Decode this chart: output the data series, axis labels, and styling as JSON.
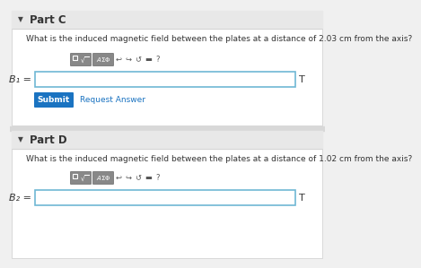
{
  "bg_color": "#f0f0f0",
  "panel_color": "#ffffff",
  "part_c_label": "Part C",
  "part_d_label": "Part D",
  "question_c": "What is the induced magnetic field between the plates at a distance of 2.03 cm from the axis?",
  "question_d": "What is the induced magnetic field between the plates at a distance of 1.02 cm from the axis?",
  "b1_label": "B₁ =",
  "b2_label": "B₂ =",
  "unit": "T",
  "submit_text": "Submit",
  "request_text": "Request Answer",
  "submit_color": "#1a73c1",
  "request_color": "#1a73c1",
  "toolbar_bg": "#888888",
  "input_border": "#70b8d4",
  "divider_color": "#cccccc",
  "question_fontsize": 6.5,
  "label_fontsize": 8,
  "part_fontsize": 8.5
}
